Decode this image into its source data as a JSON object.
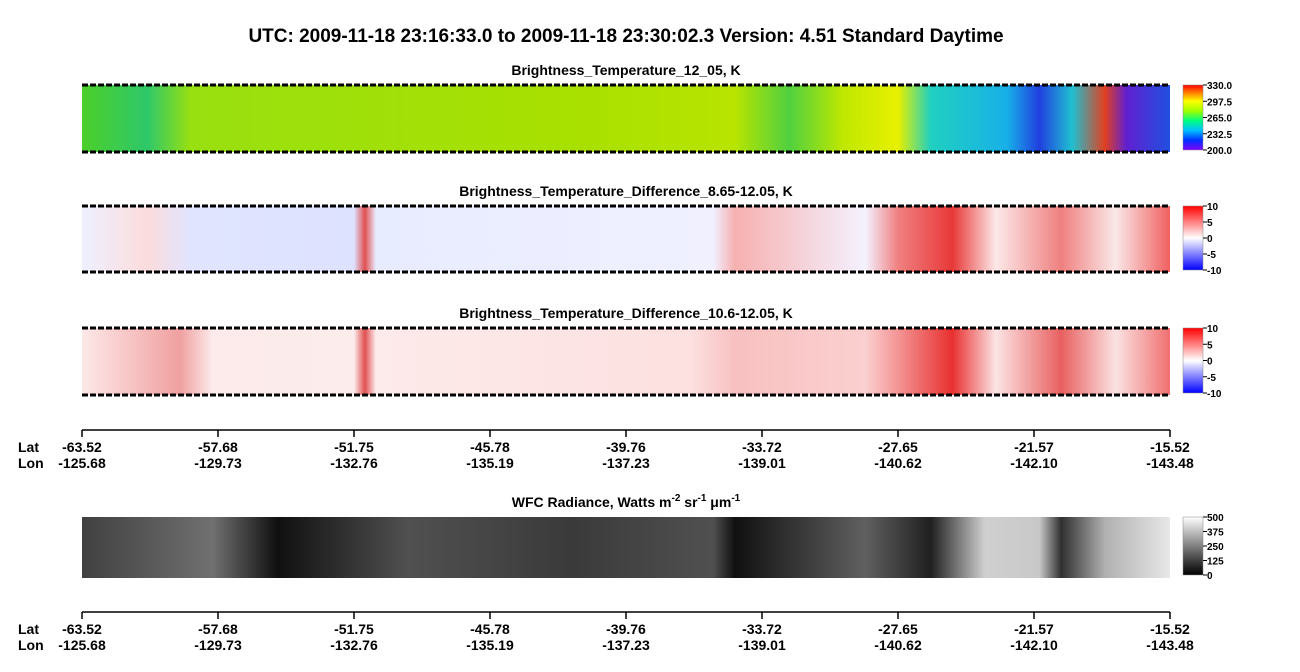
{
  "title": "UTC:  2009-11-18   23:16:33.0  to  2009-11-18   23:30:02.3    Version: 4.51  Standard Daytime",
  "panels": [
    {
      "title": [
        "Brightness_Temperature_12_05, K"
      ],
      "colormap": "rainbow",
      "clim": [
        200,
        330
      ],
      "ticks": [
        {
          "value": 330,
          "label": "330.0"
        },
        {
          "value": 297.5,
          "label": "297.5"
        },
        {
          "value": 265,
          "label": "265.0"
        },
        {
          "value": 232.5,
          "label": "232.5"
        },
        {
          "value": 200,
          "label": "200.0"
        }
      ]
    },
    {
      "title": [
        "Brightness_Temperature_Difference_8.65-12.05, K"
      ],
      "colormap": "bwr",
      "clim": [
        -10,
        10
      ],
      "ticks": [
        10,
        5,
        0,
        -5,
        -10
      ]
    },
    {
      "title": [
        "Brightness_Temperature_Difference_10.6-12.05, K"
      ],
      "colormap": "bwr",
      "clim": [
        -10,
        10
      ],
      "ticks": [
        10,
        5,
        0,
        -5,
        -10
      ]
    },
    {
      "title": [
        "WFC Radiance, Watts m",
        "-2",
        " sr",
        "-1",
        " μm",
        "-1"
      ],
      "colormap": "gray",
      "clim": [
        0,
        500
      ],
      "ticks": [
        500,
        375,
        250,
        125,
        0
      ]
    }
  ],
  "axes": [
    {
      "lat_label": "Lat",
      "lon_label": "Lon",
      "lat": [
        "-63.52",
        "-57.68",
        "-51.75",
        "-45.78",
        "-39.76",
        "-33.72",
        "-27.65",
        "-21.57",
        "-15.52"
      ],
      "lon": [
        "-125.68",
        "-129.73",
        "-132.76",
        "-135.19",
        "-137.23",
        "-139.01",
        "-140.62",
        "-142.10",
        "-143.48"
      ]
    },
    {
      "lat_label": "Lat",
      "lon_label": "Lon",
      "lat": [
        "-63.52",
        "-57.68",
        "-51.75",
        "-45.78",
        "-39.76",
        "-33.72",
        "-27.65",
        "-21.57",
        "-15.52"
      ],
      "lon": [
        "-125.68",
        "-129.73",
        "-132.76",
        "-135.19",
        "-137.23",
        "-139.01",
        "-140.62",
        "-142.10",
        "-143.48"
      ]
    }
  ]
}
